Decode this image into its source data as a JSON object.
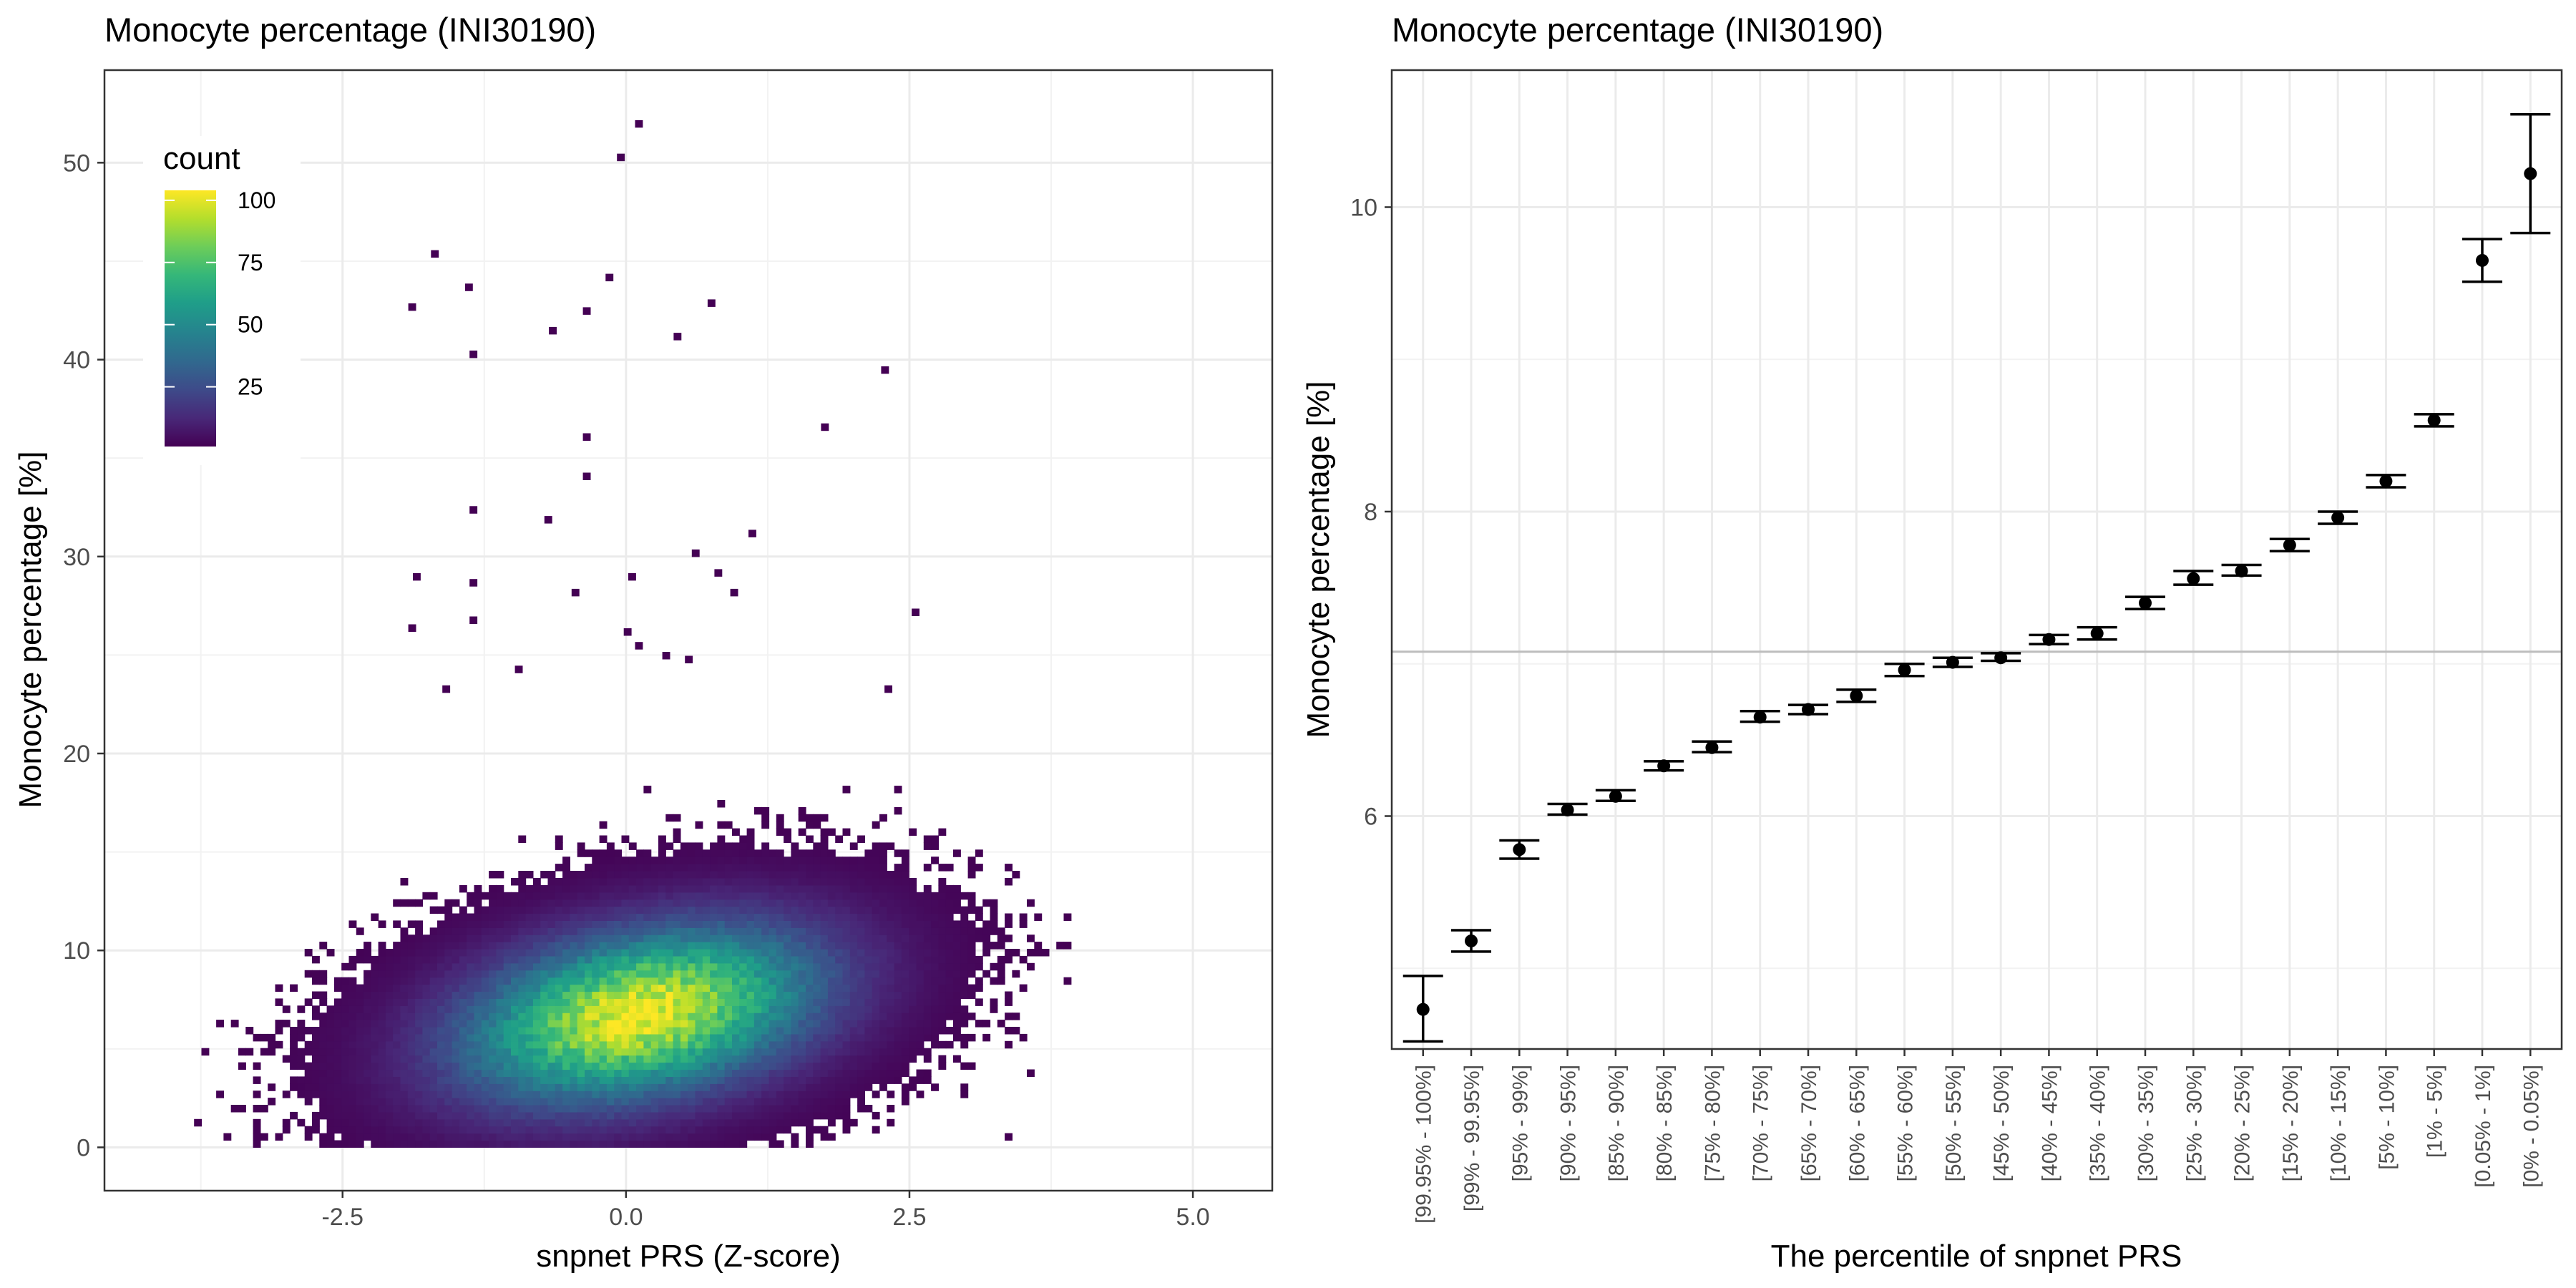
{
  "chart_data": [
    {
      "type": "heatmap",
      "title": "Monocyte percentage (INI30190)",
      "xlabel": "snpnet PRS (Z-score)",
      "ylabel": "Monocyte percentage [%]",
      "xlim": [
        -4.6,
        5.7
      ],
      "ylim": [
        -2.2,
        54.7
      ],
      "xticks": [
        -2.5,
        0.0,
        2.5,
        5.0
      ],
      "xtick_labels": [
        "-2.5",
        "0.0",
        "2.5",
        "5.0"
      ],
      "yticks": [
        0,
        10,
        20,
        30,
        40,
        50
      ],
      "ytick_labels": [
        "0",
        "10",
        "20",
        "30",
        "40",
        "50"
      ],
      "grid": true,
      "legend": {
        "title": "count",
        "placement": "top-left",
        "range": [
          1,
          104
        ],
        "ticks": [
          25,
          50,
          75,
          100
        ],
        "tick_labels": [
          "25",
          "50",
          "75",
          "100"
        ]
      },
      "colorscale": [
        "#440154",
        "#482878",
        "#3E4A89",
        "#31688E",
        "#26828E",
        "#1F9E89",
        "#35B779",
        "#6DCD59",
        "#B4DE2C",
        "#FDE725"
      ],
      "density_model": {
        "center_x": 0.1,
        "center_y": 6.6,
        "sd_x": 0.95,
        "sd_y": 2.7,
        "correlation": 0.33,
        "peak_count": 100
      },
      "outliers": [
        {
          "x": 0.08,
          "y": 51.8
        },
        {
          "x": -0.08,
          "y": 50.1
        },
        {
          "x": -1.72,
          "y": 45.2
        },
        {
          "x": -1.92,
          "y": 42.5
        },
        {
          "x": -1.42,
          "y": 43.5
        },
        {
          "x": -0.18,
          "y": 44.0
        },
        {
          "x": -0.38,
          "y": 42.3
        },
        {
          "x": -0.68,
          "y": 41.3
        },
        {
          "x": 0.72,
          "y": 42.7
        },
        {
          "x": 0.42,
          "y": 41.0
        },
        {
          "x": -1.38,
          "y": 40.1
        },
        {
          "x": 2.25,
          "y": 39.3
        },
        {
          "x": 1.72,
          "y": 36.4
        },
        {
          "x": -0.38,
          "y": 35.9
        },
        {
          "x": -0.38,
          "y": 33.9
        },
        {
          "x": -1.38,
          "y": 32.2
        },
        {
          "x": -0.72,
          "y": 31.7
        },
        {
          "x": 1.08,
          "y": 31.0
        },
        {
          "x": 0.58,
          "y": 30.0
        },
        {
          "x": -1.88,
          "y": 28.8
        },
        {
          "x": -0.48,
          "y": 28.0
        },
        {
          "x": 0.02,
          "y": 28.8
        },
        {
          "x": 0.78,
          "y": 29.0
        },
        {
          "x": 0.92,
          "y": 28.0
        },
        {
          "x": 2.52,
          "y": 27.0
        },
        {
          "x": -1.38,
          "y": 26.6
        },
        {
          "x": -1.92,
          "y": 26.2
        },
        {
          "x": -1.38,
          "y": 28.5
        },
        {
          "x": -0.02,
          "y": 26.0
        },
        {
          "x": 0.32,
          "y": 24.8
        },
        {
          "x": 0.52,
          "y": 24.6
        },
        {
          "x": -1.62,
          "y": 23.1
        },
        {
          "x": 2.28,
          "y": 23.1
        },
        {
          "x": -0.98,
          "y": 24.1
        },
        {
          "x": 0.08,
          "y": 25.3
        }
      ]
    },
    {
      "type": "scatter",
      "title": "Monocyte percentage (INI30190)",
      "xlabel": "The percentile of snpnet PRS",
      "ylabel": "Monocyte percentage [%]",
      "ylim": [
        4.47,
        10.9
      ],
      "yticks": [
        6,
        8,
        10
      ],
      "ytick_labels": [
        "6",
        "8",
        "10"
      ],
      "reference_line": 7.08,
      "grid": true,
      "categories": [
        "[99.95% - 100%]",
        "[99% - 99.95%]",
        "[95% - 99%]",
        "[90% - 95%]",
        "[85% - 90%]",
        "[80% - 85%]",
        "[75% - 80%]",
        "[70% - 75%]",
        "[65% - 70%]",
        "[60% - 65%]",
        "[55% - 60%]",
        "[50% - 55%]",
        "[45% - 50%]",
        "[40% - 45%]",
        "[35% - 40%]",
        "[30% - 35%]",
        "[25% - 30%]",
        "[20% - 25%]",
        "[15% - 20%]",
        "[10% - 15%]",
        "[5% - 10%]",
        "[1% - 5%]",
        "[0.05% - 1%]",
        "[0% - 0.05%]"
      ],
      "values": [
        4.73,
        5.18,
        5.78,
        6.04,
        6.13,
        6.33,
        6.45,
        6.65,
        6.7,
        6.79,
        6.96,
        7.01,
        7.04,
        7.16,
        7.2,
        7.4,
        7.56,
        7.61,
        7.78,
        7.96,
        8.2,
        8.6,
        9.65,
        10.22
      ],
      "lower": [
        4.52,
        5.11,
        5.72,
        6.01,
        6.1,
        6.3,
        6.42,
        6.62,
        6.67,
        6.75,
        6.92,
        6.98,
        7.02,
        7.13,
        7.16,
        7.36,
        7.52,
        7.58,
        7.74,
        7.92,
        8.16,
        8.56,
        9.51,
        9.83
      ],
      "upper": [
        4.95,
        5.25,
        5.84,
        6.08,
        6.17,
        6.36,
        6.49,
        6.69,
        6.73,
        6.83,
        7.0,
        7.04,
        7.07,
        7.19,
        7.24,
        7.44,
        7.61,
        7.65,
        7.82,
        8.0,
        8.24,
        8.64,
        9.79,
        10.61
      ]
    }
  ]
}
